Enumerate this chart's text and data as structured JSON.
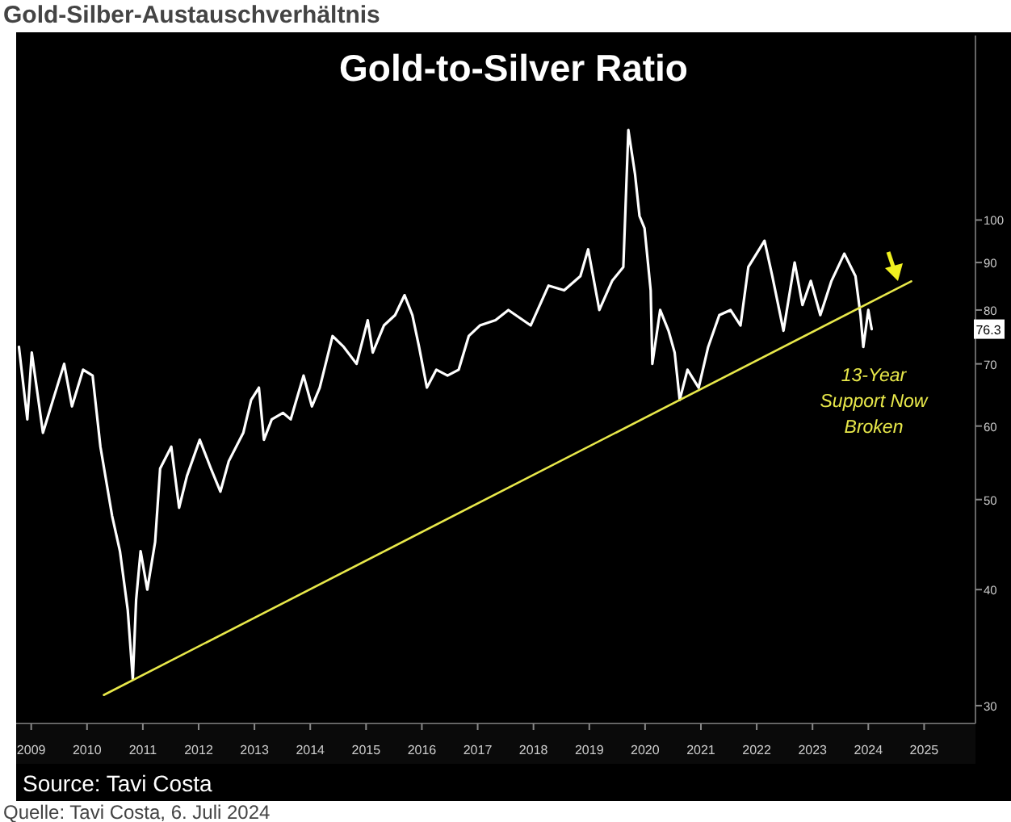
{
  "chart_data": {
    "type": "line",
    "title": "Gold-Silber-Austauschverhältnis",
    "subtitle": "Gold-to-Silver Ratio",
    "annotations": [
      "13-Year Support Now Broken",
      "Source: Tavi Costa",
      "Quelle: Tavi Costa, 6. Juli 2024",
      "76.3"
    ],
    "log": "y",
    "xlim": [
      2009.23,
      2026.42
    ],
    "ylim": [
      28.7,
      158
    ],
    "xticks": [
      {
        "value": 2009.5,
        "label": "2009"
      },
      {
        "value": 2010.5,
        "label": "2010"
      },
      {
        "value": 2011.5,
        "label": "2011"
      },
      {
        "value": 2012.5,
        "label": "2012"
      },
      {
        "value": 2013.5,
        "label": "2013"
      },
      {
        "value": 2014.5,
        "label": "2014"
      },
      {
        "value": 2015.5,
        "label": "2015"
      },
      {
        "value": 2016.5,
        "label": "2016"
      },
      {
        "value": 2017.5,
        "label": "2017"
      },
      {
        "value": 2018.5,
        "label": "2018"
      },
      {
        "value": 2019.5,
        "label": "2019"
      },
      {
        "value": 2020.5,
        "label": "2020"
      },
      {
        "value": 2021.5,
        "label": "2021"
      },
      {
        "value": 2022.5,
        "label": "2022"
      },
      {
        "value": 2023.5,
        "label": "2023"
      },
      {
        "value": 2024.5,
        "label": "2024"
      },
      {
        "value": 2025.5,
        "label": "2025"
      }
    ],
    "yticks": [
      30,
      40,
      50,
      60,
      70,
      80,
      90,
      100
    ],
    "series": [
      {
        "color": "#ffffff",
        "x": [
          2009.28,
          2009.43,
          2009.51,
          2009.71,
          2009.89,
          2010.09,
          2010.23,
          2010.43,
          2010.6,
          2010.74,
          2010.95,
          2011.09,
          2011.23,
          2011.32,
          2011.38,
          2011.46,
          2011.58,
          2011.72,
          2011.81,
          2012.01,
          2012.15,
          2012.29,
          2012.52,
          2012.72,
          2012.89,
          2013.04,
          2013.3,
          2013.44,
          2013.58,
          2013.67,
          2013.81,
          2014.01,
          2014.15,
          2014.38,
          2014.53,
          2014.67,
          2014.9,
          2015.1,
          2015.33,
          2015.53,
          2015.62,
          2015.82,
          2016.02,
          2016.19,
          2016.33,
          2016.45,
          2016.59,
          2016.76,
          2016.96,
          2017.16,
          2017.34,
          2017.54,
          2017.82,
          2018.05,
          2018.45,
          2018.77,
          2019.05,
          2019.34,
          2019.48,
          2019.68,
          2019.91,
          2020.11,
          2020.2,
          2020.32,
          2020.4,
          2020.49,
          2020.6,
          2020.63,
          2020.77,
          2020.92,
          2021.03,
          2021.12,
          2021.26,
          2021.46,
          2021.63,
          2021.83,
          2022.03,
          2022.21,
          2022.35,
          2022.64,
          2022.78,
          2022.98,
          2023.18,
          2023.32,
          2023.47,
          2023.64,
          2023.84,
          2024.07,
          2024.27,
          2024.36,
          2024.41,
          2024.5,
          2024.56
        ],
        "values": [
          73,
          61,
          72,
          59,
          64,
          70,
          63,
          69,
          68,
          57,
          48,
          44,
          38,
          32,
          39,
          44,
          40,
          45,
          54,
          57,
          49,
          53,
          58,
          54,
          51,
          55,
          59,
          64,
          66,
          58,
          61,
          62,
          61,
          68,
          63,
          66,
          75,
          73,
          70,
          78,
          72,
          77,
          79,
          83,
          79,
          73,
          66,
          69,
          68,
          69,
          75,
          77,
          78,
          80,
          77,
          85,
          84,
          87,
          93,
          80,
          86,
          89,
          125,
          112,
          101,
          98,
          84,
          70,
          80,
          76,
          72,
          64,
          69,
          66,
          73,
          79,
          80,
          77,
          89,
          95,
          87,
          76,
          90,
          81,
          86,
          79,
          86,
          92,
          87,
          79,
          73,
          80,
          76.3
        ]
      },
      {
        "color": "#e8e84a",
        "x": [
          2010.8,
          2025.27
        ],
        "values": [
          30.8,
          85.9
        ]
      }
    ]
  }
}
